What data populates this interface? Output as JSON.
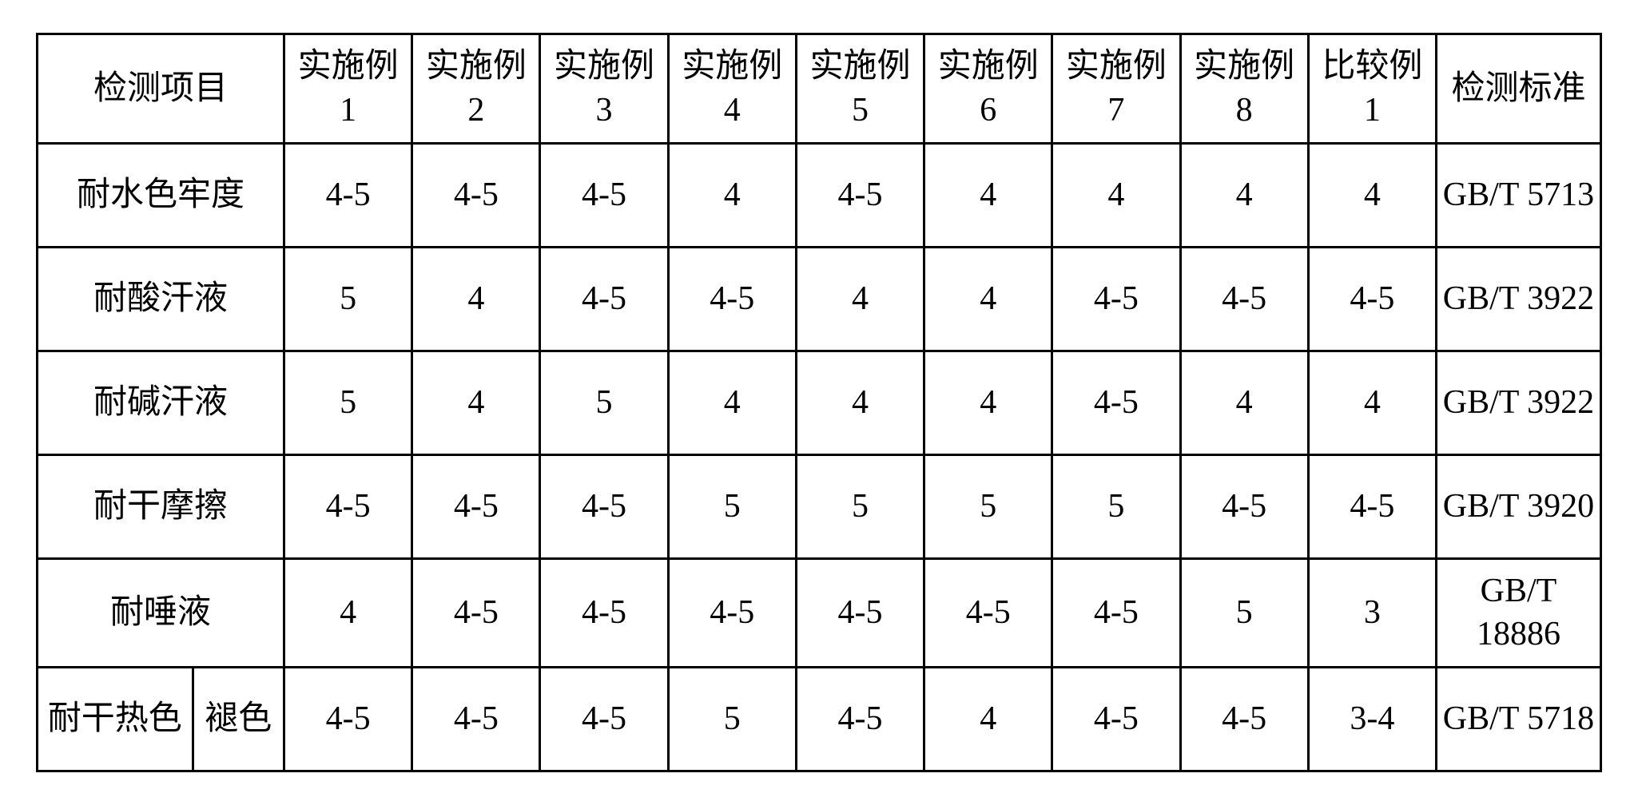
{
  "table": {
    "type": "table",
    "background_color": "#ffffff",
    "border_color": "#000000",
    "border_width": 3,
    "font_size": 42,
    "font_family": "SimSun",
    "text_color": "#000000",
    "header": {
      "label": "检测项目",
      "columns": [
        "实施例 1",
        "实施例 2",
        "实施例 3",
        "实施例 4",
        "实施例 5",
        "实施例 6",
        "实施例 7",
        "实施例 8",
        "比较例 1",
        "检测标准"
      ]
    },
    "rows": [
      {
        "label": "耐水色牢度",
        "sublabel": null,
        "values": [
          "4-5",
          "4-5",
          "4-5",
          "4",
          "4-5",
          "4",
          "4",
          "4",
          "4",
          "GB/T 5713"
        ]
      },
      {
        "label": "耐酸汗液",
        "sublabel": null,
        "values": [
          "5",
          "4",
          "4-5",
          "4-5",
          "4",
          "4",
          "4-5",
          "4-5",
          "4-5",
          "GB/T 3922"
        ]
      },
      {
        "label": "耐碱汗液",
        "sublabel": null,
        "values": [
          "5",
          "4",
          "5",
          "4",
          "4",
          "4",
          "4-5",
          "4",
          "4",
          "GB/T 3922"
        ]
      },
      {
        "label": "耐干摩擦",
        "sublabel": null,
        "values": [
          "4-5",
          "4-5",
          "4-5",
          "5",
          "5",
          "5",
          "5",
          "4-5",
          "4-5",
          "GB/T 3920"
        ]
      },
      {
        "label": "耐唾液",
        "sublabel": null,
        "values": [
          "4",
          "4-5",
          "4-5",
          "4-5",
          "4-5",
          "4-5",
          "4-5",
          "5",
          "3",
          "GB/T 18886"
        ]
      },
      {
        "label": "耐干热色",
        "sublabel": "褪色",
        "values": [
          "4-5",
          "4-5",
          "4-5",
          "5",
          "4-5",
          "4",
          "4-5",
          "4-5",
          "3-4",
          "GB/T 5718"
        ]
      }
    ]
  }
}
